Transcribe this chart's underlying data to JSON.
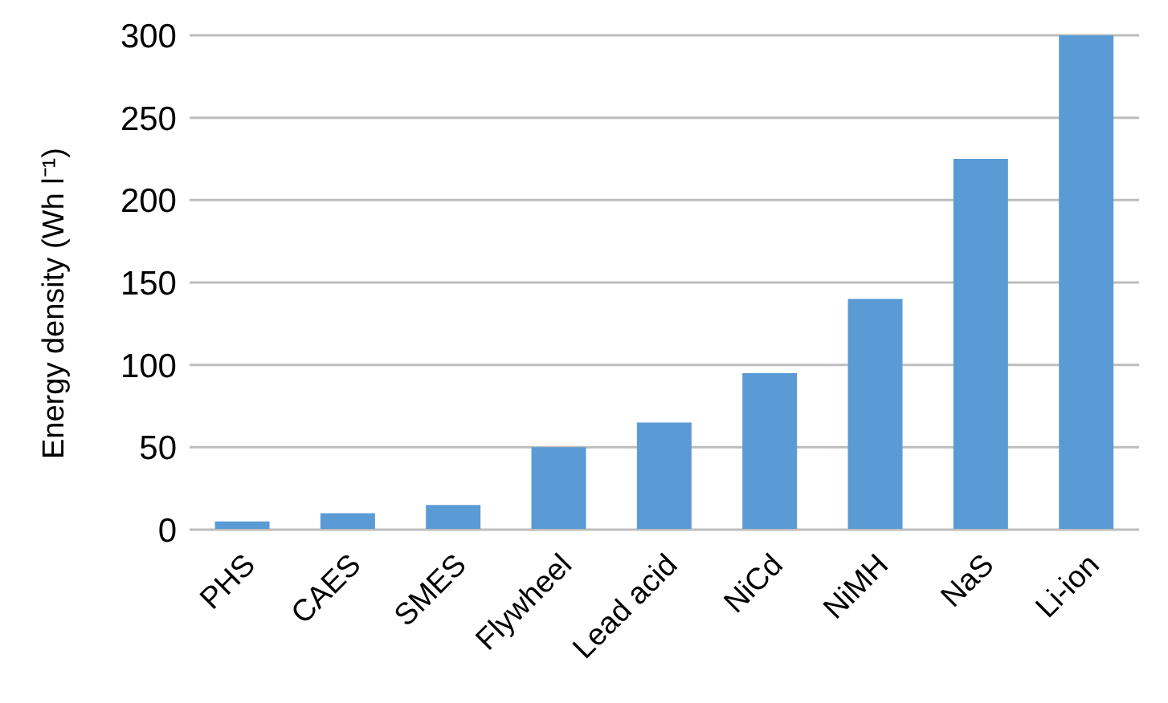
{
  "chart_data": {
    "type": "bar",
    "ylabel": "Energy density (Wh l⁻¹)",
    "categories": [
      "PHS",
      "CAES",
      "SMES",
      "Flywheel",
      "Lead acid",
      "NiCd",
      "NiMH",
      "NaS",
      "Li-ion"
    ],
    "values": [
      5,
      10,
      15,
      50,
      65,
      95,
      140,
      225,
      300
    ],
    "color": "#5b9bd5",
    "ylim": [
      0,
      300
    ],
    "yticks": [
      0,
      50,
      100,
      150,
      200,
      250,
      300
    ],
    "grid": "y"
  }
}
